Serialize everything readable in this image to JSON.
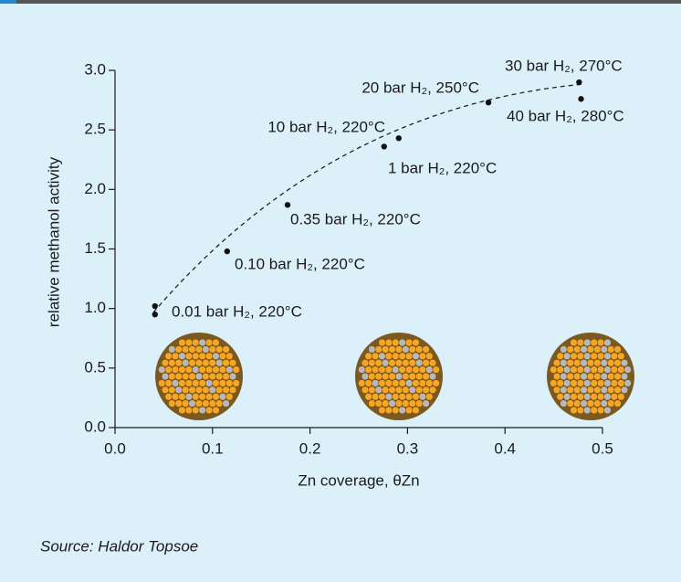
{
  "chart_data": {
    "type": "scatter",
    "x": [
      0.041,
      0.041,
      0.115,
      0.177,
      0.276,
      0.291,
      0.383,
      0.476,
      0.478
    ],
    "values": [
      1.02,
      0.95,
      1.48,
      1.87,
      2.36,
      2.43,
      2.73,
      2.9,
      2.76
    ],
    "color": "#111111",
    "annotations": [
      "0.01 bar H₂, 220°C",
      "0.10 bar H₂, 220°C",
      "0.35 bar H₂, 220°C",
      "1 bar H₂, 220°C",
      "10 bar H₂, 220°C",
      "20 bar H₂, 250°C",
      "30 bar H₂, 270°C",
      "40 bar H₂, 280°C"
    ],
    "xlabel": "Zn coverage, θZn",
    "ylabel": "relative methanol activity",
    "xlim": [
      0,
      0.5
    ],
    "ylim": [
      0,
      3
    ],
    "xticks": [
      {
        "value": 0,
        "label": "0.0"
      },
      0.1,
      0.2,
      0.3,
      0.4,
      0.5
    ],
    "yticks": [
      {
        "value": 0,
        "label": "0.0"
      },
      0.5,
      {
        "value": 1,
        "label": "1.0"
      },
      1.5,
      {
        "value": 2,
        "label": "2.0"
      },
      2.5,
      {
        "value": 3,
        "label": "3.0"
      }
    ],
    "source": "Source: Haldor Topsoe"
  }
}
